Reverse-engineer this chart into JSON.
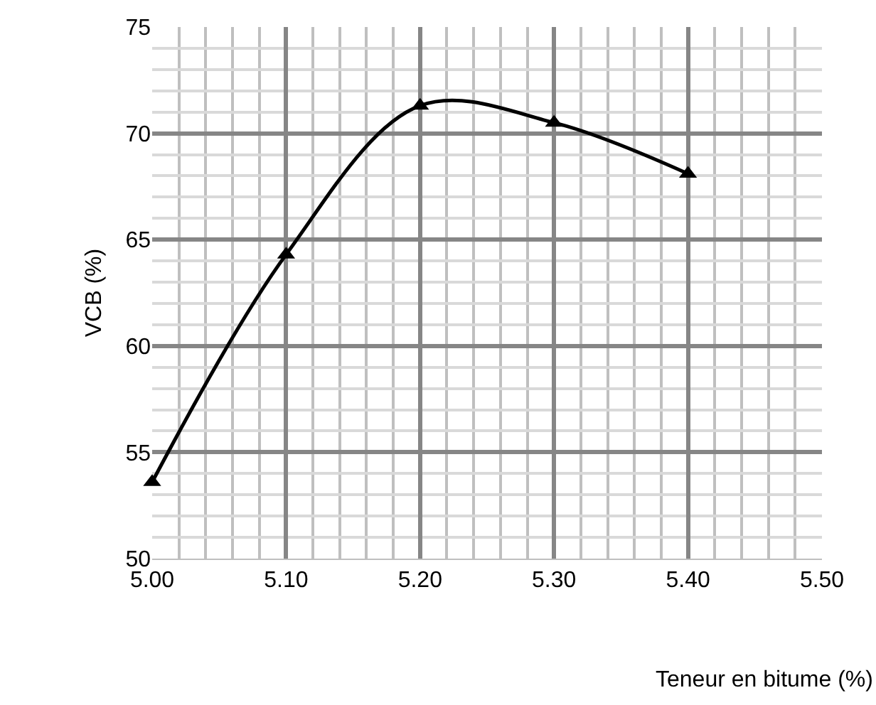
{
  "chart_data": {
    "type": "line",
    "xlabel": "Teneur en bitume (%)",
    "ylabel": "VCB (%)",
    "x": [
      5.0,
      5.1,
      5.2,
      5.3,
      5.4
    ],
    "series": [
      {
        "color": "#000000",
        "values": [
          53.6,
          64.3,
          71.3,
          70.5,
          68.1
        ]
      }
    ],
    "xlim": [
      5.0,
      5.5
    ],
    "xticks": [
      {
        "value": 5.0,
        "label": "5.00"
      },
      {
        "value": 5.1,
        "label": "5.10"
      },
      {
        "value": 5.2,
        "label": "5.20"
      },
      {
        "value": 5.3,
        "label": "5.30"
      },
      {
        "value": 5.4,
        "label": "5.40"
      },
      {
        "value": 5.5,
        "label": "5.50"
      }
    ],
    "ylim": [
      50,
      75
    ],
    "yticks": [
      50,
      55,
      60,
      65,
      70,
      75
    ],
    "grid": true,
    "marker": "triangle",
    "line_style": "solid",
    "legend": false
  }
}
